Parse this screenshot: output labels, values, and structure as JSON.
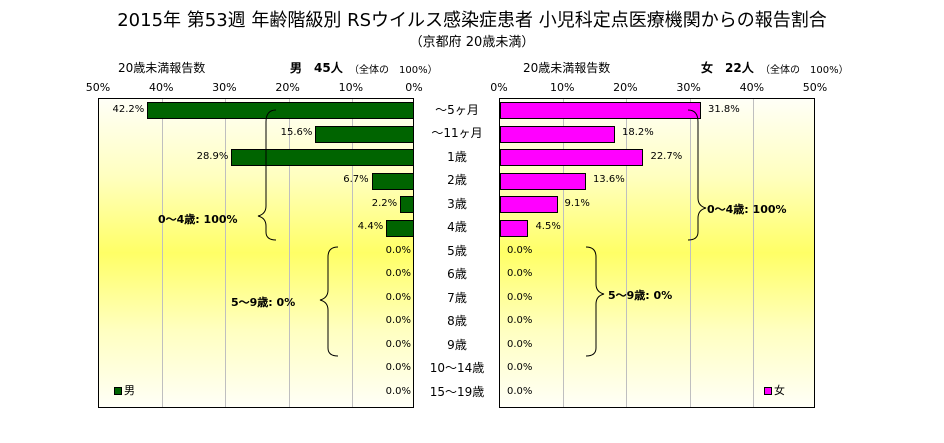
{
  "title": "2015年 第53週 年齢階級別 RSウイルス感染症患者 小児科定点医療機関からの報告割合",
  "subtitle": "（京都府 20歳未満）",
  "left_header": {
    "label": "20歳未満報告数",
    "sex_count": "男　45人",
    "note": "（全体の　100%）"
  },
  "right_header": {
    "label": "20歳未満報告数",
    "sex_count": "女　22人",
    "note": "（全体の　100%）"
  },
  "brace_labels": {
    "male_0_4": "0～4歳: 100%",
    "male_5_9": "5～9歳: 0%",
    "female_0_4": "0～4歳: 100%",
    "female_5_9": "5～9歳: 0%"
  },
  "legend": {
    "male": "男",
    "female": "女"
  },
  "colors": {
    "male": "#006400",
    "female": "#ff00ff"
  },
  "chart_data": {
    "type": "bar",
    "orientation": "horizontal",
    "layout": "population-pyramid",
    "categories": [
      "～5ヶ月",
      "～11ヶ月",
      "1歳",
      "2歳",
      "3歳",
      "4歳",
      "5歳",
      "6歳",
      "7歳",
      "8歳",
      "9歳",
      "10～14歳",
      "15～19歳"
    ],
    "series": [
      {
        "name": "男",
        "values": [
          42.2,
          15.6,
          28.9,
          6.7,
          2.2,
          4.4,
          0.0,
          0.0,
          0.0,
          0.0,
          0.0,
          0.0,
          0.0
        ],
        "labels": [
          "42.2%",
          "15.6%",
          "28.9%",
          "6.7%",
          "2.2%",
          "4.4%",
          "0.0%",
          "0.0%",
          "0.0%",
          "0.0%",
          "0.0%",
          "0.0%",
          "0.0%"
        ]
      },
      {
        "name": "女",
        "values": [
          31.8,
          18.2,
          22.7,
          13.6,
          9.1,
          4.5,
          0.0,
          0.0,
          0.0,
          0.0,
          0.0,
          0.0,
          0.0
        ],
        "labels": [
          "31.8%",
          "18.2%",
          "22.7%",
          "13.6%",
          "9.1%",
          "4.5%",
          "0.0%",
          "0.0%",
          "0.0%",
          "0.0%",
          "0.0%",
          "0.0%",
          "0.0%"
        ]
      }
    ],
    "xlim": [
      0,
      50
    ],
    "x_ticks_left": [
      "50%",
      "40%",
      "30%",
      "20%",
      "10%",
      "0%"
    ],
    "x_ticks_right": [
      "0%",
      "10%",
      "20%",
      "30%",
      "40%",
      "50%"
    ],
    "grid": true,
    "legend_position": "bottom-left / bottom-right"
  }
}
